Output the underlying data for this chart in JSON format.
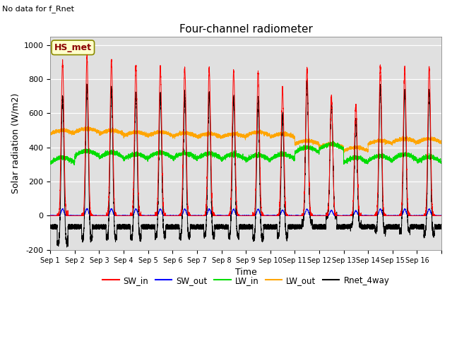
{
  "title": "Four-channel radiometer",
  "subtitle": "No data for f_Rnet",
  "xlabel": "Time",
  "ylabel": "Solar radiation (W/m2)",
  "ylim": [
    -200,
    1050
  ],
  "yticks": [
    -200,
    0,
    200,
    400,
    600,
    800,
    1000
  ],
  "station_label": "HS_met",
  "bg_color": "#e0e0e0",
  "line_colors": {
    "SW_in": "#ff0000",
    "SW_out": "#0000ff",
    "LW_in": "#00dd00",
    "LW_out": "#ffa500",
    "Rnet_4way": "#000000"
  },
  "x_tick_labels": [
    "Sep 1",
    "Sep 2",
    "Sep 3",
    "Sep 4",
    "Sep 5",
    "Sep 6",
    "Sep 7",
    "Sep 8",
    "Sep 9",
    "Sep 10",
    "Sep 11",
    "Sep 12",
    "Sep 13",
    "Sep 14",
    "Sep 15",
    "Sep 16"
  ],
  "n_days": 16,
  "sw_peaks": [
    900,
    930,
    910,
    880,
    870,
    865,
    860,
    845,
    840,
    740,
    860,
    700,
    650,
    880,
    860,
    870
  ],
  "lw_out_base": [
    480,
    490,
    480,
    470,
    470,
    465,
    460,
    460,
    470,
    460,
    420,
    400,
    380,
    420,
    430,
    430
  ],
  "lw_in_base": [
    310,
    350,
    340,
    330,
    340,
    335,
    335,
    330,
    325,
    330,
    370,
    390,
    310,
    320,
    330,
    315
  ]
}
